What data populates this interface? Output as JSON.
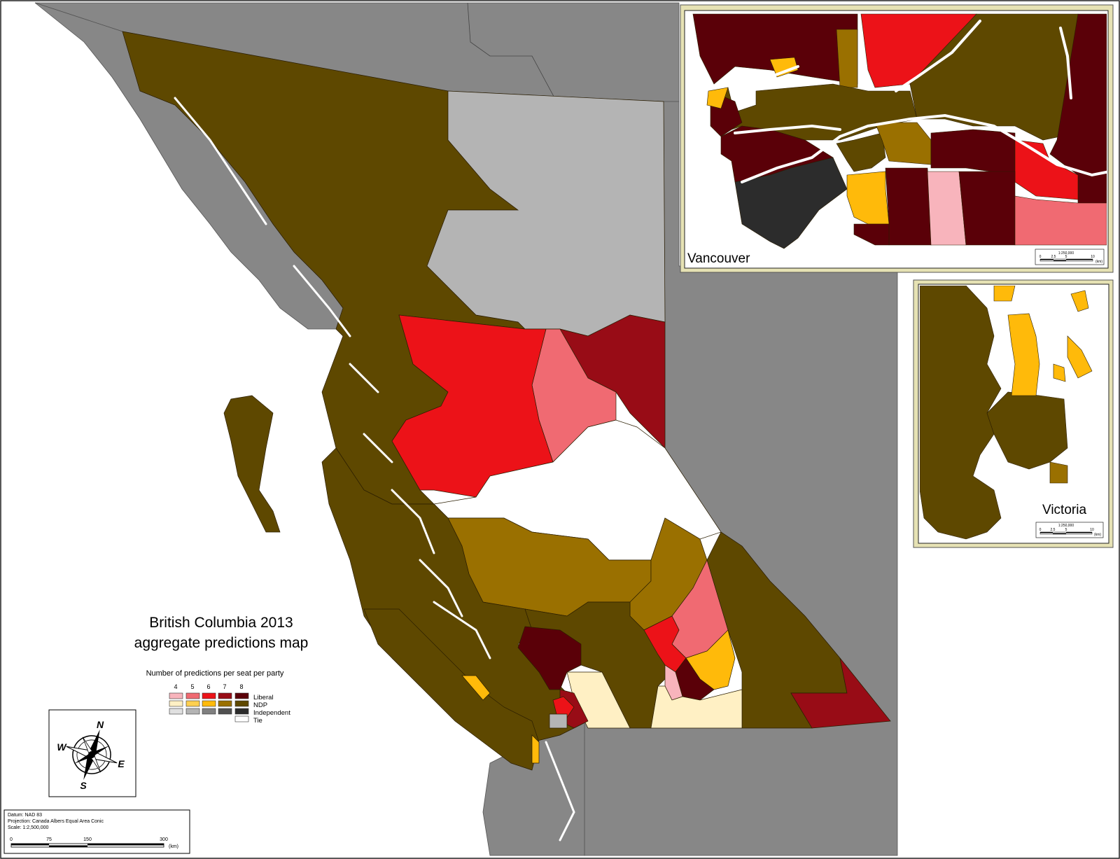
{
  "title": {
    "line1": "British Columbia 2013",
    "line2": "aggregate predictions map"
  },
  "legend": {
    "heading": "Number of predictions per seat per party",
    "counts": [
      "4",
      "5",
      "6",
      "7",
      "8"
    ],
    "rows": [
      {
        "label": "Liberal",
        "colors": [
          "#f8b4bc",
          "#f06a72",
          "#ec1218",
          "#980c16",
          "#5a0008"
        ]
      },
      {
        "label": "NDP",
        "colors": [
          "#fff0c4",
          "#ffd050",
          "#ffba0a",
          "#9a7000",
          "#5e4800"
        ]
      },
      {
        "label": "Independent",
        "colors": [
          "#e0e0e0",
          "#b4b4b4",
          "#808080",
          "#505050",
          "#2c2c2c"
        ]
      },
      {
        "label": "Tie",
        "colors": [
          "#ffffff"
        ]
      }
    ]
  },
  "compass": {
    "n": "N",
    "s": "S",
    "e": "E",
    "w": "W"
  },
  "datum": {
    "line1": "Datum: NAD 83",
    "line2": "Projection: Canada Albers Equal Area Conic",
    "line3": "Scale: 1:2,500,000",
    "ticks": [
      "0",
      "75",
      "150",
      "300"
    ],
    "unit": "(km)"
  },
  "insets": {
    "vancouver": {
      "label": "Vancouver",
      "scale": "1:250,000",
      "ticks": [
        "0",
        "2.5",
        "5",
        "10"
      ],
      "unit": "(km)"
    },
    "victoria": {
      "label": "Victoria",
      "scale": "1:250,000",
      "ticks": [
        "0",
        "2.5",
        "5",
        "10"
      ],
      "unit": "(km)"
    }
  },
  "colors": {
    "ocean": "#ffffff",
    "foreign_land": "#878787",
    "frame": "#e6e2b4"
  }
}
